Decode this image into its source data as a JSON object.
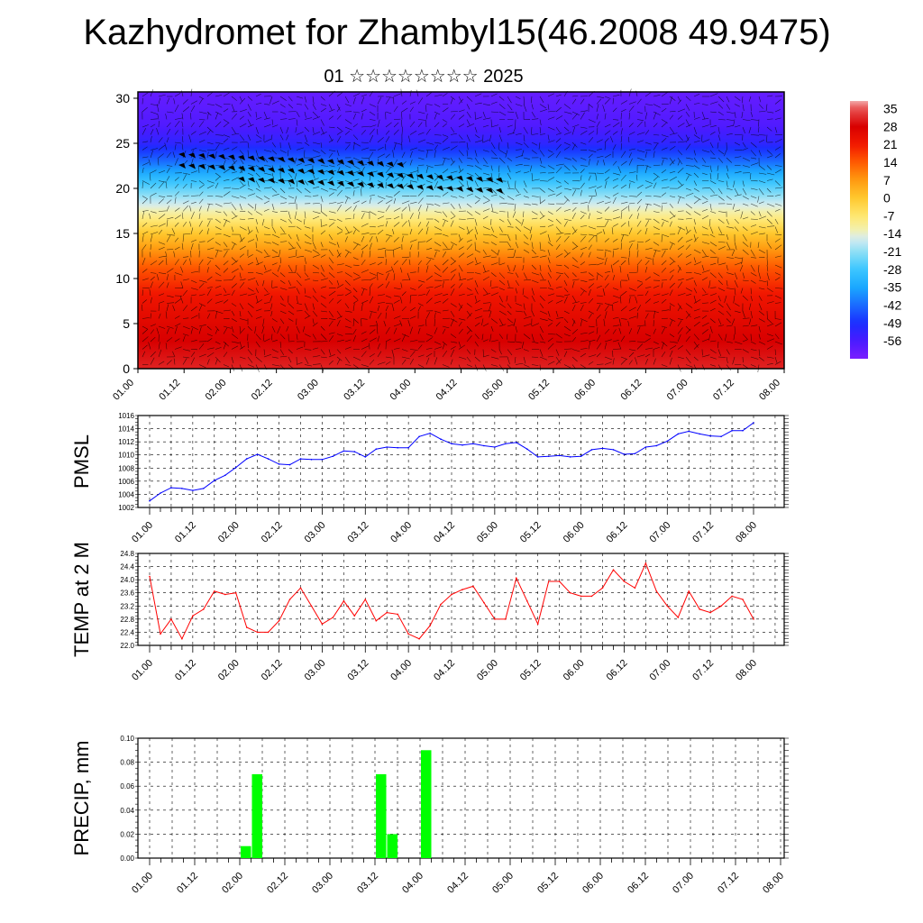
{
  "header": {
    "title": "Kazhydromet for Zhambyl15(46.2008 49.9475)",
    "subtitle": "01 ☆☆☆☆☆☆☆☆ 2025"
  },
  "chart_data": [
    {
      "type": "heatmap",
      "name": "cross-section",
      "x_ticks": [
        "01.00",
        "01.12",
        "02.00",
        "02.12",
        "03.00",
        "03.12",
        "04.00",
        "04.12",
        "05.00",
        "05.12",
        "06.00",
        "06.12",
        "07.00",
        "07.12",
        "08.00"
      ],
      "y_ticks": [
        0,
        5,
        10,
        15,
        20,
        25,
        30
      ],
      "ylim": [
        0,
        30.7
      ],
      "colorbar": {
        "labels": [
          "35",
          "28",
          "21",
          "14",
          "7",
          "0",
          "-7",
          "-14",
          "-21",
          "-28",
          "-35",
          "-42",
          "-49",
          "-56"
        ],
        "range": [
          -63,
          38
        ]
      },
      "profile_by_level": [
        {
          "level": 0,
          "value": 31
        },
        {
          "level": 4,
          "value": 27
        },
        {
          "level": 8,
          "value": 22
        },
        {
          "level": 11,
          "value": 15
        },
        {
          "level": 13,
          "value": 8
        },
        {
          "level": 15,
          "value": 0
        },
        {
          "level": 17,
          "value": -10
        },
        {
          "level": 19,
          "value": -20
        },
        {
          "level": 21,
          "value": -30
        },
        {
          "level": 23,
          "value": -42
        },
        {
          "level": 25,
          "value": -52
        },
        {
          "level": 27,
          "value": -57
        },
        {
          "level": 30.7,
          "value": -60
        }
      ],
      "wind_barbs_bold_region": {
        "x_range": [
          "01.08",
          "04.18"
        ],
        "y_range": [
          20.5,
          24.5
        ]
      }
    },
    {
      "type": "line",
      "ylabel": "PMSL",
      "ylim": [
        1002,
        1016
      ],
      "y_ticks": [
        1002,
        1004,
        1006,
        1008,
        1010,
        1012,
        1014,
        1016
      ],
      "x_ticks": [
        "01.00",
        "01.12",
        "02.00",
        "02.12",
        "03.00",
        "03.12",
        "04.00",
        "04.12",
        "05.00",
        "05.12",
        "06.00",
        "06.12",
        "07.00",
        "07.12",
        "08.00"
      ],
      "x_step_hours": 3,
      "color": "#0000ff",
      "values": [
        1003.0,
        1004.2,
        1005.0,
        1004.9,
        1004.6,
        1004.9,
        1006.1,
        1006.9,
        1008.1,
        1009.4,
        1010.1,
        1009.4,
        1008.6,
        1008.5,
        1009.4,
        1009.3,
        1009.3,
        1009.8,
        1010.6,
        1010.5,
        1009.7,
        1010.9,
        1011.2,
        1011.1,
        1011.1,
        1012.8,
        1013.3,
        1012.4,
        1011.7,
        1011.5,
        1011.7,
        1011.4,
        1011.2,
        1011.7,
        1011.9,
        1010.9,
        1009.7,
        1009.8,
        1009.9,
        1009.7,
        1009.8,
        1010.8,
        1011.0,
        1010.8,
        1010.1,
        1010.2,
        1011.2,
        1011.4,
        1012.1,
        1013.2,
        1013.6,
        1013.2,
        1012.9,
        1012.8,
        1013.7,
        1013.7,
        1014.9
      ]
    },
    {
      "type": "line",
      "ylabel": "TEMP at 2 M",
      "ylim": [
        22.0,
        24.8
      ],
      "y_ticks": [
        "22.0",
        "22.4",
        "22.8",
        "23.2",
        "23.6",
        "24.0",
        "24.4",
        "24.8"
      ],
      "x_ticks": [
        "01.00",
        "01.12",
        "02.00",
        "02.12",
        "03.00",
        "03.12",
        "04.00",
        "04.12",
        "05.00",
        "05.12",
        "06.00",
        "06.12",
        "07.00",
        "07.12",
        "08.00"
      ],
      "x_step_hours": 3,
      "color": "#ff0000",
      "values": [
        24.1,
        22.35,
        22.8,
        22.2,
        22.9,
        23.1,
        23.65,
        23.55,
        23.6,
        22.55,
        22.4,
        22.4,
        22.75,
        23.4,
        23.75,
        23.2,
        22.65,
        22.85,
        23.35,
        22.9,
        23.4,
        22.75,
        23.0,
        22.95,
        22.35,
        22.2,
        22.6,
        23.25,
        23.55,
        23.7,
        23.8,
        23.3,
        22.8,
        22.8,
        24.05,
        23.35,
        22.65,
        23.95,
        23.95,
        23.6,
        23.5,
        23.5,
        23.75,
        24.3,
        23.95,
        23.75,
        24.5,
        23.65,
        23.2,
        22.85,
        23.65,
        23.1,
        23.0,
        23.2,
        23.5,
        23.4,
        22.8
      ]
    },
    {
      "type": "bar",
      "ylabel": "PRECIP, mm",
      "ylim": [
        0,
        0.1
      ],
      "y_ticks": [
        "0.00",
        "0.02",
        "0.04",
        "0.06",
        "0.08",
        "0.10"
      ],
      "x_ticks": [
        "01.00",
        "01.12",
        "02.00",
        "02.12",
        "03.00",
        "03.12",
        "04.00",
        "04.12",
        "05.00",
        "05.12",
        "06.00",
        "06.12",
        "07.00",
        "07.12",
        "08.00"
      ],
      "color": "#00ff00",
      "bars": [
        {
          "x": "02.00",
          "value": 0.01
        },
        {
          "x": "02.03",
          "value": 0.07
        },
        {
          "x": "03.12",
          "value": 0.07
        },
        {
          "x": "03.15",
          "value": 0.02
        },
        {
          "x": "04.00",
          "value": 0.09
        }
      ]
    }
  ]
}
